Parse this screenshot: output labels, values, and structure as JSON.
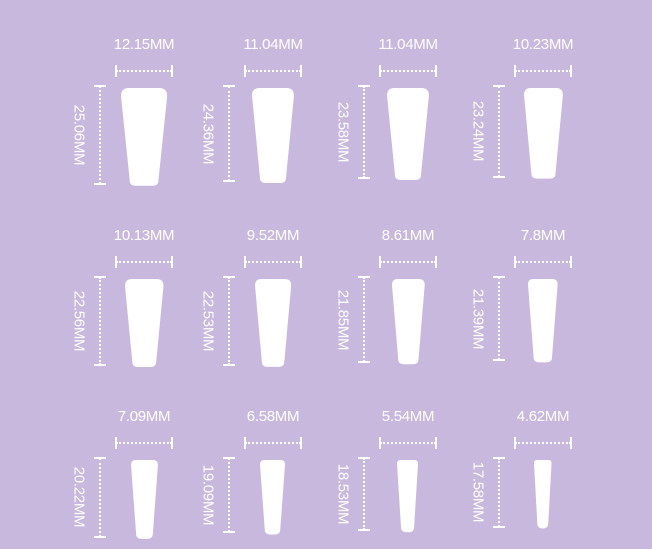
{
  "background_color": "#c9b8de",
  "unit": "MM",
  "nails": [
    {
      "width": "12.15MM",
      "length": "25.06MM",
      "w": 12.15,
      "l": 25.06
    },
    {
      "width": "11.04MM",
      "length": "24.36MM",
      "w": 11.04,
      "l": 24.36
    },
    {
      "width": "11.04MM",
      "length": "23.58MM",
      "w": 11.04,
      "l": 23.58
    },
    {
      "width": "10.23MM",
      "length": "23.24MM",
      "w": 10.23,
      "l": 23.24
    },
    {
      "width": "10.13MM",
      "length": "22.56MM",
      "w": 10.13,
      "l": 22.56
    },
    {
      "width": "9.52MM",
      "length": "22.53MM",
      "w": 9.52,
      "l": 22.53
    },
    {
      "width": "8.61MM",
      "length": "21.85MM",
      "w": 8.61,
      "l": 21.85
    },
    {
      "width": "7.8MM",
      "length": "21.39MM",
      "w": 7.8,
      "l": 21.39
    },
    {
      "width": "7.09MM",
      "length": "20.22MM",
      "w": 7.09,
      "l": 20.22
    },
    {
      "width": "6.58MM",
      "length": "19.09MM",
      "w": 6.58,
      "l": 19.09
    },
    {
      "width": "5.54MM",
      "length": "18.53MM",
      "w": 5.54,
      "l": 18.53
    },
    {
      "width": "4.62MM",
      "length": "17.58MM",
      "w": 4.62,
      "l": 17.58
    }
  ]
}
